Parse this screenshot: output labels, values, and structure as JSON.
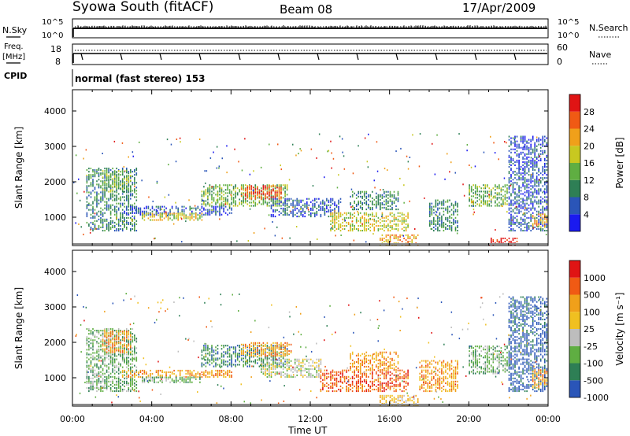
{
  "header": {
    "title_left": "Syowa South (fitACF)",
    "title_center": "Beam 08",
    "title_right": "17/Apr/2009"
  },
  "nsky_panel": {
    "left_label": "N.Sky",
    "left_ticks": [
      "10^5",
      "10^0"
    ],
    "right_label": "N.Search",
    "right_ticks": [
      "10^5",
      "10^0"
    ]
  },
  "freq_panel": {
    "left_label_line1": "Freq.",
    "left_label_line2": "[MHz]",
    "left_ticks": [
      "18",
      "8"
    ],
    "right_label": "Nave",
    "right_ticks": [
      "60",
      "0"
    ]
  },
  "cpid": {
    "label": "CPID",
    "text": "normal (fast stereo) 153"
  },
  "chart_data": [
    {
      "type": "heatmap",
      "quantity": "Power",
      "ylabel": "Slant Range [km]",
      "ylim": [
        200,
        4600
      ],
      "yticks": [
        "1000",
        "2000",
        "3000",
        "4000"
      ],
      "xlim_hours": [
        0,
        24
      ],
      "colorbar_label": "Power [dB]",
      "colorbar_ticks": [
        "4",
        "8",
        "12",
        "16",
        "20",
        "24",
        "28"
      ],
      "colorbar_colors": [
        "#1a1af0",
        "#2a55b8",
        "#2e7f55",
        "#5fae42",
        "#c8c820",
        "#f0a01a",
        "#f05a14",
        "#e01414"
      ],
      "regions": [
        {
          "t0": 0.7,
          "t1": 3.3,
          "r0": 600,
          "r1": 2400,
          "level": 2
        },
        {
          "t0": 1.5,
          "t1": 3.0,
          "r0": 1700,
          "r1": 2300,
          "level": 3
        },
        {
          "t0": 2.5,
          "t1": 8.0,
          "r0": 1050,
          "r1": 1300,
          "level": 1
        },
        {
          "t0": 3.5,
          "t1": 6.5,
          "r0": 900,
          "r1": 1100,
          "level": 4
        },
        {
          "t0": 6.5,
          "t1": 10.8,
          "r0": 1300,
          "r1": 1900,
          "level": 3
        },
        {
          "t0": 8.5,
          "t1": 10.5,
          "r0": 1500,
          "r1": 1900,
          "level": 6
        },
        {
          "t0": 10.0,
          "t1": 13.5,
          "r0": 1000,
          "r1": 1500,
          "level": 1
        },
        {
          "t0": 13.0,
          "t1": 17.0,
          "r0": 600,
          "r1": 1100,
          "level": 4
        },
        {
          "t0": 15.5,
          "t1": 17.5,
          "r0": 200,
          "r1": 500,
          "level": 5
        },
        {
          "t0": 14.0,
          "t1": 16.5,
          "r0": 1200,
          "r1": 1700,
          "level": 2
        },
        {
          "t0": 18.0,
          "t1": 19.5,
          "r0": 600,
          "r1": 1500,
          "level": 2
        },
        {
          "t0": 20.0,
          "t1": 22.0,
          "r0": 1300,
          "r1": 1900,
          "level": 3
        },
        {
          "t0": 21.0,
          "t1": 22.5,
          "r0": 200,
          "r1": 400,
          "level": 7
        },
        {
          "t0": 22.0,
          "t1": 24.0,
          "r0": 600,
          "r1": 3300,
          "level": 1
        },
        {
          "t0": 23.2,
          "t1": 24.0,
          "r0": 700,
          "r1": 1100,
          "level": 5
        }
      ]
    },
    {
      "type": "heatmap",
      "quantity": "Velocity",
      "ylabel": "Slant Range [km]",
      "ylim": [
        200,
        4600
      ],
      "yticks": [
        "1000",
        "2000",
        "3000",
        "4000"
      ],
      "xlim_hours": [
        0,
        24
      ],
      "xticks": [
        "00:00",
        "04:00",
        "08:00",
        "12:00",
        "16:00",
        "20:00",
        "00:00"
      ],
      "xlabel": "Time UT",
      "colorbar_label": "Velocity [m s⁻¹]",
      "colorbar_ticks": [
        "1000",
        "500",
        "100",
        "25",
        "-25",
        "-100",
        "-500",
        "-1000"
      ],
      "colorbar_colors": [
        "#2a55b8",
        "#2e7f55",
        "#5fae42",
        "#bdbdbd",
        "#f0c020",
        "#f0a01a",
        "#f05a14",
        "#e01414"
      ],
      "regions": [
        {
          "t0": 0.7,
          "t1": 3.3,
          "r0": 600,
          "r1": 2400,
          "level": 2
        },
        {
          "t0": 1.5,
          "t1": 3.0,
          "r0": 1700,
          "r1": 2300,
          "level": 5
        },
        {
          "t0": 2.5,
          "t1": 8.0,
          "r0": 1000,
          "r1": 1200,
          "level": 5
        },
        {
          "t0": 3.5,
          "t1": 6.5,
          "r0": 850,
          "r1": 1000,
          "level": 2
        },
        {
          "t0": 6.5,
          "t1": 10.8,
          "r0": 1300,
          "r1": 1900,
          "level": 1
        },
        {
          "t0": 8.5,
          "t1": 11.0,
          "r0": 1600,
          "r1": 2000,
          "level": 5
        },
        {
          "t0": 9.5,
          "t1": 12.5,
          "r0": 1000,
          "r1": 1500,
          "level": 3
        },
        {
          "t0": 12.5,
          "t1": 17.0,
          "r0": 600,
          "r1": 1200,
          "level": 6
        },
        {
          "t0": 14.0,
          "t1": 16.5,
          "r0": 1200,
          "r1": 1700,
          "level": 5
        },
        {
          "t0": 15.5,
          "t1": 17.5,
          "r0": 200,
          "r1": 500,
          "level": 4
        },
        {
          "t0": 17.5,
          "t1": 19.5,
          "r0": 600,
          "r1": 1500,
          "level": 5
        },
        {
          "t0": 20.0,
          "t1": 22.0,
          "r0": 1100,
          "r1": 1900,
          "level": 2
        },
        {
          "t0": 22.0,
          "t1": 24.0,
          "r0": 600,
          "r1": 3300,
          "level": 0
        },
        {
          "t0": 23.2,
          "t1": 24.0,
          "r0": 700,
          "r1": 1200,
          "level": 5
        }
      ]
    }
  ]
}
